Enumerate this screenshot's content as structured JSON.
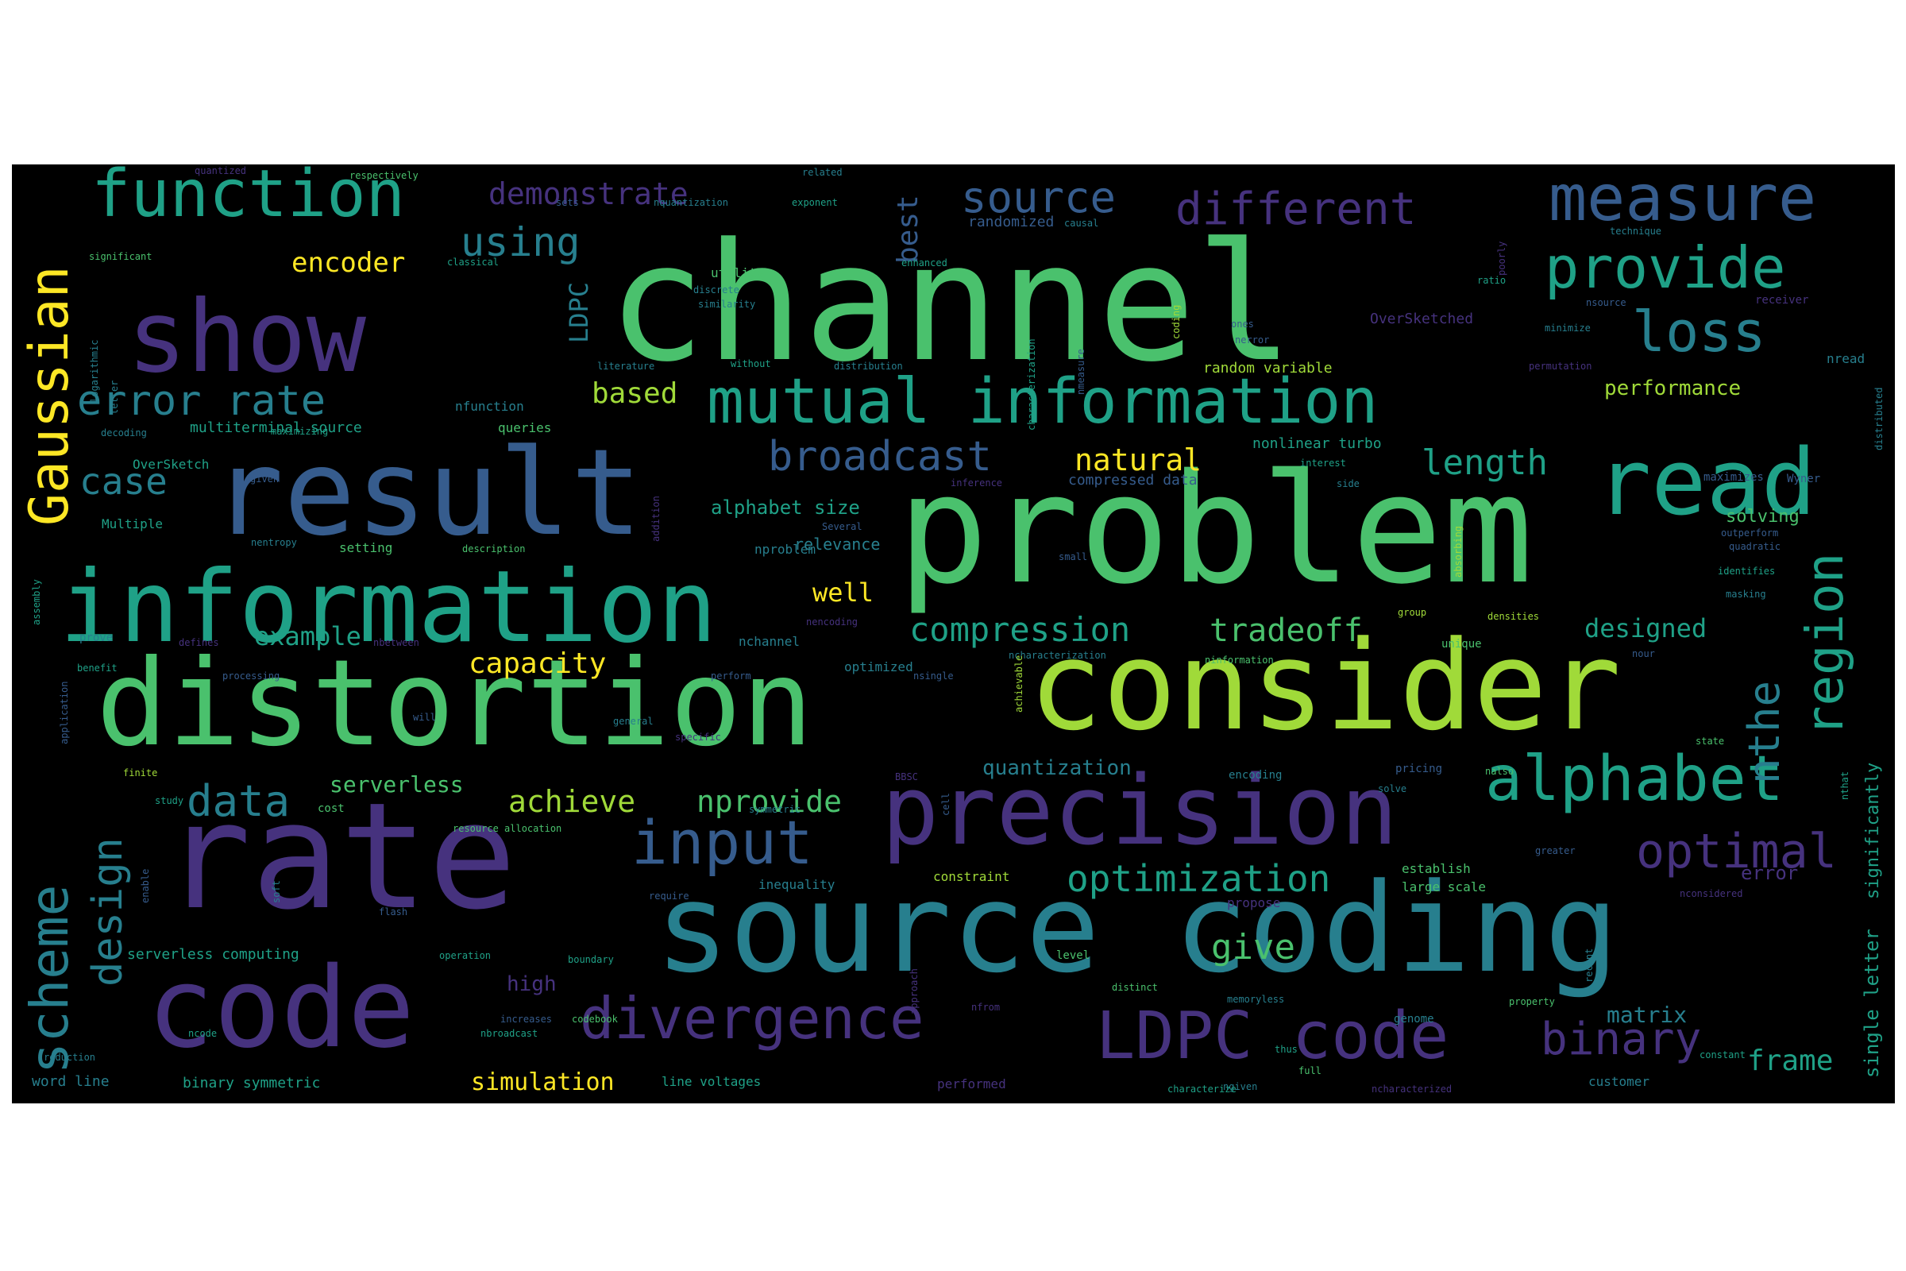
{
  "palette": {
    "background": "#000000",
    "page_background": "#ffffff",
    "word_colors": [
      "#440154",
      "#46327e",
      "#365c8d",
      "#277f8e",
      "#1fa187",
      "#4ac16d",
      "#a0da39",
      "#fde725"
    ]
  },
  "words": [
    {
      "text": "channel",
      "weight": 100
    },
    {
      "text": "problem",
      "weight": 92
    },
    {
      "text": "rate",
      "weight": 90
    },
    {
      "text": "result",
      "weight": 88
    },
    {
      "text": "distortion",
      "weight": 86
    },
    {
      "text": "source coding",
      "weight": 84
    },
    {
      "text": "consider",
      "weight": 80
    },
    {
      "text": "code",
      "weight": 78
    },
    {
      "text": "show",
      "weight": 76
    },
    {
      "text": "information",
      "weight": 74
    },
    {
      "text": "precision",
      "weight": 70
    },
    {
      "text": "mutual information",
      "weight": 66
    },
    {
      "text": "read",
      "weight": 60
    },
    {
      "text": "function",
      "weight": 55
    },
    {
      "text": "measure",
      "weight": 54
    },
    {
      "text": "alphabet",
      "weight": 52
    },
    {
      "text": "divergence",
      "weight": 50
    },
    {
      "text": "LDPC code",
      "weight": 50
    },
    {
      "text": "provide",
      "weight": 48
    },
    {
      "text": "input",
      "weight": 48
    },
    {
      "text": "Gaussian",
      "weight": 46
    },
    {
      "text": "loss",
      "weight": 44
    },
    {
      "text": "scheme",
      "weight": 44
    },
    {
      "text": "region",
      "weight": 44
    },
    {
      "text": "optimal",
      "weight": 40
    },
    {
      "text": "different",
      "weight": 40
    },
    {
      "text": "source",
      "weight": 38
    },
    {
      "text": "error rate",
      "weight": 38
    },
    {
      "text": "binary",
      "weight": 36
    },
    {
      "text": "broadcast",
      "weight": 36
    },
    {
      "text": "data",
      "weight": 34
    },
    {
      "text": "design",
      "weight": 34
    },
    {
      "text": "nthe",
      "weight": 34
    },
    {
      "text": "optimization",
      "weight": 32
    },
    {
      "text": "using",
      "weight": 32
    },
    {
      "text": "compression",
      "weight": 30
    },
    {
      "text": "case",
      "weight": 30
    },
    {
      "text": "length",
      "weight": 30
    },
    {
      "text": "demonstrate",
      "weight": 28
    },
    {
      "text": "achieve",
      "weight": 28
    },
    {
      "text": "tradeoff",
      "weight": 28
    },
    {
      "text": "frame",
      "weight": 26
    },
    {
      "text": "give",
      "weight": 26
    },
    {
      "text": "nprovide",
      "weight": 26
    },
    {
      "text": "natural",
      "weight": 26
    },
    {
      "text": "capacity",
      "weight": 26
    },
    {
      "text": "based",
      "weight": 24
    },
    {
      "text": "designed",
      "weight": 24
    },
    {
      "text": "encoder",
      "weight": 24
    },
    {
      "text": "example",
      "weight": 24
    },
    {
      "text": "best",
      "weight": 24
    },
    {
      "text": "LDPC",
      "weight": 24
    },
    {
      "text": "well",
      "weight": 22
    },
    {
      "text": "simulation",
      "weight": 22
    },
    {
      "text": "matrix",
      "weight": 22
    },
    {
      "text": "serverless",
      "weight": 20
    },
    {
      "text": "quantization",
      "weight": 20
    },
    {
      "text": "alphabet size",
      "weight": 20
    },
    {
      "text": "single letter",
      "weight": 20
    },
    {
      "text": "significantly",
      "weight": 20
    },
    {
      "text": "performance",
      "weight": 20
    },
    {
      "text": "solving",
      "weight": 18
    },
    {
      "text": "error",
      "weight": 18
    },
    {
      "text": "high",
      "weight": 18
    },
    {
      "text": "relevance",
      "weight": 18
    },
    {
      "text": "randomized",
      "weight": 16
    },
    {
      "text": "random variable",
      "weight": 16
    },
    {
      "text": "nonlinear turbo",
      "weight": 16
    },
    {
      "text": "compressed data",
      "weight": 16
    },
    {
      "text": "OverSketched",
      "weight": 16
    },
    {
      "text": "multiterminal source",
      "weight": 16
    },
    {
      "text": "serverless computing",
      "weight": 16
    },
    {
      "text": "word line",
      "weight": 16
    },
    {
      "text": "binary symmetric",
      "weight": 16
    },
    {
      "text": "line voltages",
      "weight": 16
    },
    {
      "text": "customer",
      "weight": 16
    },
    {
      "text": "performed",
      "weight": 16
    },
    {
      "text": "inequality",
      "weight": 16
    },
    {
      "text": "large scale",
      "weight": 16
    },
    {
      "text": "propose",
      "weight": 16
    },
    {
      "text": "establish",
      "weight": 16
    },
    {
      "text": "constraint",
      "weight": 16
    },
    {
      "text": "optimized",
      "weight": 16
    },
    {
      "text": "queries",
      "weight": 16
    },
    {
      "text": "setting",
      "weight": 16
    },
    {
      "text": "nproblem",
      "weight": 16
    },
    {
      "text": "nchannel",
      "weight": 16
    },
    {
      "text": "nfunction",
      "weight": 16
    },
    {
      "text": "Multiple",
      "weight": 16
    },
    {
      "text": "OverSketch",
      "weight": 16
    },
    {
      "text": "utility",
      "weight": 16
    },
    {
      "text": "nread",
      "weight": 16
    },
    {
      "text": "maximizes",
      "weight": 16
    },
    {
      "text": "Wyner",
      "weight": 16
    },
    {
      "text": "receiver",
      "weight": 14
    },
    {
      "text": "cost",
      "weight": 14
    },
    {
      "text": "level",
      "weight": 14
    },
    {
      "text": "prove",
      "weight": 14
    },
    {
      "text": "unique",
      "weight": 14
    },
    {
      "text": "genome",
      "weight": 14
    },
    {
      "text": "pricing",
      "weight": 14
    },
    {
      "text": "encoding",
      "weight": 14
    },
    {
      "text": "resource allocation",
      "weight": 12
    },
    {
      "text": "greater",
      "weight": 12
    },
    {
      "text": "memoryless",
      "weight": 12
    },
    {
      "text": "codebook",
      "weight": 12
    },
    {
      "text": "quantized",
      "weight": 12
    },
    {
      "text": "respectively",
      "weight": 12
    },
    {
      "text": "related",
      "weight": 12
    },
    {
      "text": "sets",
      "weight": 12
    },
    {
      "text": "nquantization",
      "weight": 12
    },
    {
      "text": "exponent",
      "weight": 12
    },
    {
      "text": "causal",
      "weight": 12
    },
    {
      "text": "significant",
      "weight": 12
    },
    {
      "text": "classical",
      "weight": 12
    },
    {
      "text": "enhanced",
      "weight": 12
    },
    {
      "text": "discrete",
      "weight": 12
    },
    {
      "text": "similarity",
      "weight": 12
    },
    {
      "text": "coding",
      "weight": 12
    },
    {
      "text": "poorly",
      "weight": 12
    },
    {
      "text": "ratio",
      "weight": 12
    },
    {
      "text": "technique",
      "weight": 12
    },
    {
      "text": "nsource",
      "weight": 12
    },
    {
      "text": "minimize",
      "weight": 12
    },
    {
      "text": "nmeasure",
      "weight": 12
    },
    {
      "text": "characterization",
      "weight": 12
    },
    {
      "text": "ones",
      "weight": 12
    },
    {
      "text": "nerror",
      "weight": 12
    },
    {
      "text": "literature",
      "weight": 12
    },
    {
      "text": "without",
      "weight": 12
    },
    {
      "text": "distribution",
      "weight": 12
    },
    {
      "text": "permutation",
      "weight": 12
    },
    {
      "text": "logarithmic",
      "weight": 12
    },
    {
      "text": "letter",
      "weight": 12
    },
    {
      "text": "decoding",
      "weight": 12
    },
    {
      "text": "maximizing",
      "weight": 12
    },
    {
      "text": "interest",
      "weight": 12
    },
    {
      "text": "given",
      "weight": 12
    },
    {
      "text": "addition",
      "weight": 12
    },
    {
      "text": "inference",
      "weight": 12
    },
    {
      "text": "side",
      "weight": 12
    },
    {
      "text": "nentropy",
      "weight": 12
    },
    {
      "text": "description",
      "weight": 12
    },
    {
      "text": "Several",
      "weight": 12
    },
    {
      "text": "small",
      "weight": 12
    },
    {
      "text": "absorbing",
      "weight": 12
    },
    {
      "text": "outperform",
      "weight": 12
    },
    {
      "text": "quadratic",
      "weight": 12
    },
    {
      "text": "identifies",
      "weight": 12
    },
    {
      "text": "masking",
      "weight": 12
    },
    {
      "text": "distributed",
      "weight": 12
    },
    {
      "text": "assembly",
      "weight": 12
    },
    {
      "text": "defines",
      "weight": 12
    },
    {
      "text": "nbetween",
      "weight": 12
    },
    {
      "text": "nencoding",
      "weight": 12
    },
    {
      "text": "group",
      "weight": 12
    },
    {
      "text": "densities",
      "weight": 12
    },
    {
      "text": "ninformation",
      "weight": 12
    },
    {
      "text": "benefit",
      "weight": 12
    },
    {
      "text": "application",
      "weight": 12
    },
    {
      "text": "processing",
      "weight": 12
    },
    {
      "text": "perform",
      "weight": 12
    },
    {
      "text": "nsingle",
      "weight": 12
    },
    {
      "text": "ncharacterization",
      "weight": 12
    },
    {
      "text": "achievable",
      "weight": 12
    },
    {
      "text": "nour",
      "weight": 12
    },
    {
      "text": "will",
      "weight": 12
    },
    {
      "text": "general",
      "weight": 12
    },
    {
      "text": "specific",
      "weight": 12
    },
    {
      "text": "state",
      "weight": 12
    },
    {
      "text": "finite",
      "weight": 12
    },
    {
      "text": "study",
      "weight": 12
    },
    {
      "text": "symmetric",
      "weight": 12
    },
    {
      "text": "BBSC",
      "weight": 12
    },
    {
      "text": "cell",
      "weight": 12
    },
    {
      "text": "solve",
      "weight": 12
    },
    {
      "text": "nalso",
      "weight": 12
    },
    {
      "text": "nthat",
      "weight": 12
    },
    {
      "text": "enable",
      "weight": 12
    },
    {
      "text": "soft",
      "weight": 12
    },
    {
      "text": "flash",
      "weight": 12
    },
    {
      "text": "require",
      "weight": 12
    },
    {
      "text": "nconsidered",
      "weight": 12
    },
    {
      "text": "operation",
      "weight": 12
    },
    {
      "text": "boundary",
      "weight": 12
    },
    {
      "text": "approach",
      "weight": 12
    },
    {
      "text": "distinct",
      "weight": 12
    },
    {
      "text": "recent",
      "weight": 12
    },
    {
      "text": "increases",
      "weight": 12
    },
    {
      "text": "nfrom",
      "weight": 12
    },
    {
      "text": "property",
      "weight": 12
    },
    {
      "text": "reduction",
      "weight": 12
    },
    {
      "text": "ncode",
      "weight": 12
    },
    {
      "text": "nbroadcast",
      "weight": 12
    },
    {
      "text": "thus",
      "weight": 12
    },
    {
      "text": "constant",
      "weight": 12
    },
    {
      "text": "full",
      "weight": 12
    },
    {
      "text": "ngiven",
      "weight": 12
    },
    {
      "text": "characterize",
      "weight": 12
    },
    {
      "text": "ncharacterized",
      "weight": 12
    }
  ]
}
